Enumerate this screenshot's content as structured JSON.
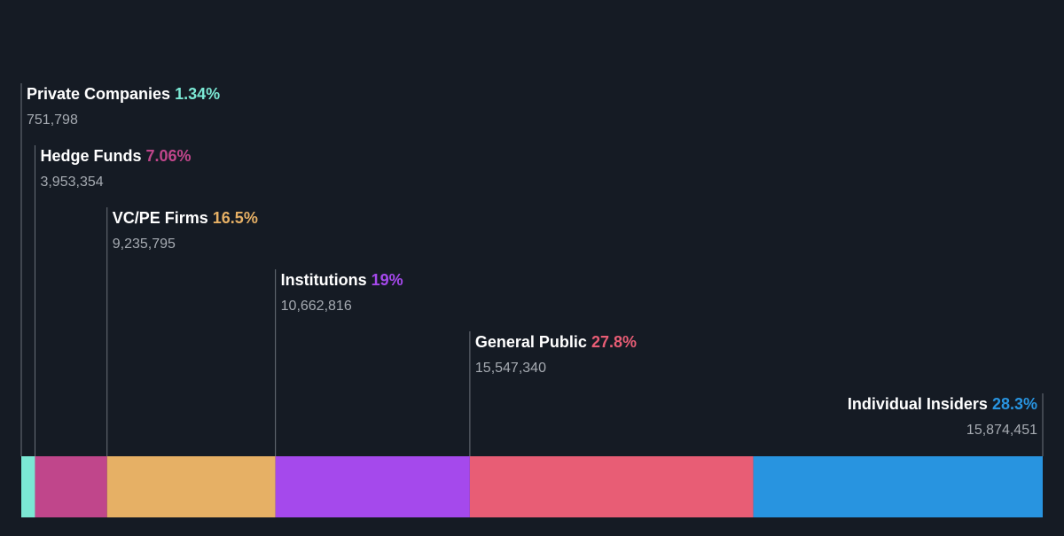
{
  "chart_data": {
    "type": "bar",
    "orientation": "horizontal-stacked",
    "total": 56025554,
    "segments": [
      {
        "name": "Private Companies",
        "percent_label": "1.34%",
        "shares": 751798,
        "shares_label": "751,798",
        "color": "#7be8d4"
      },
      {
        "name": "Hedge Funds",
        "percent_label": "7.06%",
        "shares": 3953354,
        "shares_label": "3,953,354",
        "color": "#c0468b"
      },
      {
        "name": "VC/PE Firms",
        "percent_label": "16.5%",
        "shares": 9235795,
        "shares_label": "9,235,795",
        "color": "#e6b065"
      },
      {
        "name": "Institutions",
        "percent_label": "19%",
        "shares": 10662816,
        "shares_label": "10,662,816",
        "color": "#a549ec"
      },
      {
        "name": "General Public",
        "percent_label": "27.8%",
        "shares": 15547340,
        "shares_label": "15,547,340",
        "color": "#e85d75"
      },
      {
        "name": "Individual Insiders",
        "percent_label": "28.3%",
        "shares": 15874451,
        "shares_label": "15,874,451",
        "color": "#2894e0"
      }
    ]
  }
}
